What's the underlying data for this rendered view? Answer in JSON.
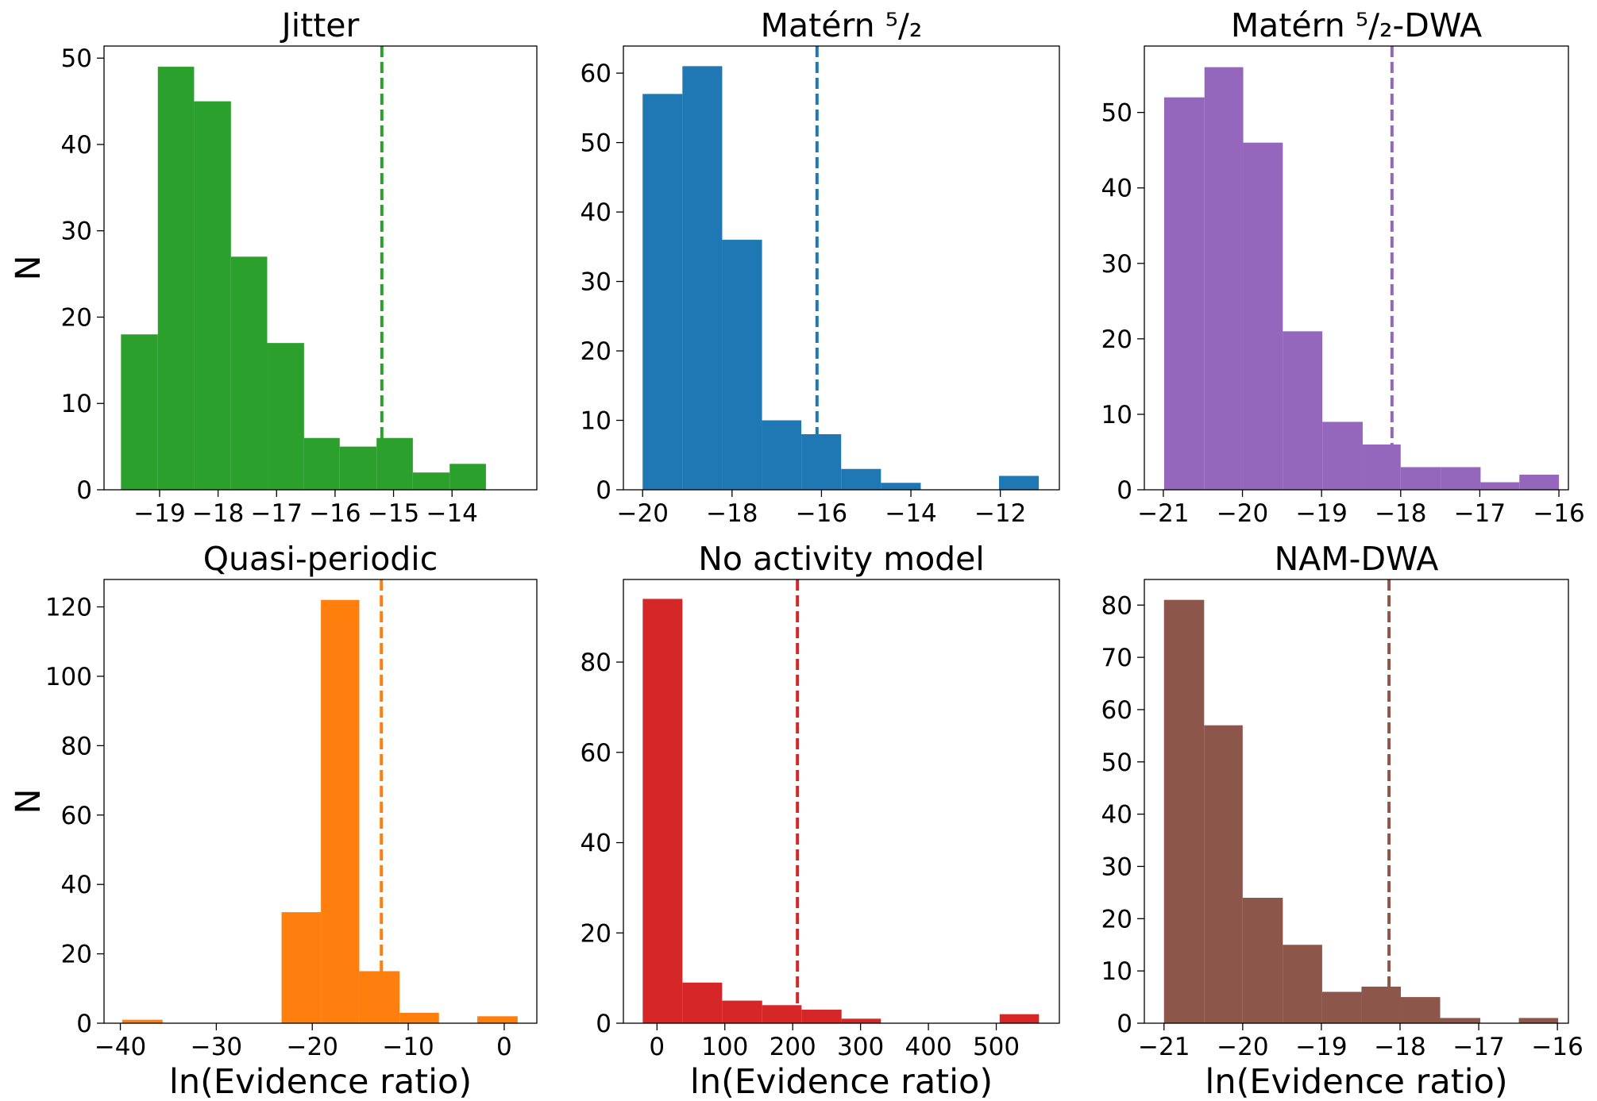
{
  "chart_data": [
    {
      "type": "histogram",
      "title": "Jitter",
      "ylabel": "N",
      "color": "#2ca02c",
      "bins": [
        -19.66,
        -19.03,
        -18.41,
        -17.78,
        -17.16,
        -16.53,
        -15.92,
        -15.29,
        -14.67,
        -14.04,
        -13.42
      ],
      "values": [
        18,
        49,
        45,
        27,
        17,
        6,
        5,
        6,
        2,
        3
      ],
      "vline": -15.2,
      "xlim": [
        -19.95,
        -12.55
      ],
      "xticks": [
        -19,
        -18,
        -17,
        -16,
        -15,
        -14
      ],
      "ylim": [
        0,
        51.4
      ],
      "yticks": [
        0,
        10,
        20,
        30,
        40,
        50
      ]
    },
    {
      "type": "histogram",
      "title": "Matérn ⁵/₂",
      "color": "#1f77b4",
      "bins": [
        -20.0,
        -19.11,
        -18.22,
        -17.33,
        -16.45,
        -15.56,
        -14.67,
        -13.78,
        -12.89,
        -12.03,
        -11.14
      ],
      "values": [
        57,
        61,
        36,
        10,
        8,
        3,
        1,
        0,
        0,
        2
      ],
      "vline": -16.1,
      "xlim": [
        -20.43,
        -10.68
      ],
      "xticks": [
        -20,
        -18,
        -16,
        -14,
        -12
      ],
      "ylim": [
        0,
        63.9
      ],
      "yticks": [
        0,
        10,
        20,
        30,
        40,
        50,
        60
      ]
    },
    {
      "type": "histogram",
      "title": "Matérn ⁵/₂-DWA",
      "color": "#9467bd",
      "bins": [
        -20.99,
        -20.48,
        -19.99,
        -19.49,
        -18.99,
        -18.48,
        -18.0,
        -17.49,
        -16.99,
        -16.5,
        -16.0
      ],
      "values": [
        52,
        56,
        46,
        21,
        9,
        6,
        3,
        3,
        1,
        2
      ],
      "vline": -18.11,
      "xlim": [
        -21.24,
        -15.88
      ],
      "xticks": [
        -21,
        -20,
        -19,
        -18,
        -17,
        -16
      ],
      "ylim": [
        0,
        58.8
      ],
      "yticks": [
        0,
        10,
        20,
        30,
        40,
        50
      ]
    },
    {
      "type": "histogram",
      "title": "Quasi-periodic",
      "ylabel": "N",
      "xlabel": "ln(Evidence ratio)",
      "color": "#ff7f0e",
      "bins": [
        -39.8,
        -35.6,
        -31.5,
        -27.4,
        -23.2,
        -19.1,
        -15.1,
        -10.9,
        -6.8,
        -2.8,
        1.4
      ],
      "values": [
        1,
        0,
        0,
        0,
        32,
        122,
        15,
        3,
        0,
        2
      ],
      "vline": -12.8,
      "xlim": [
        -41.7,
        3.4
      ],
      "xticks": [
        -40,
        -30,
        -20,
        -10,
        0
      ],
      "ylim": [
        0,
        127.9
      ],
      "yticks": [
        0,
        20,
        40,
        60,
        80,
        100,
        120
      ]
    },
    {
      "type": "histogram",
      "title": "No activity model",
      "xlabel": "ln(Evidence ratio)",
      "color": "#d62728",
      "bins": [
        -21,
        37.5,
        96,
        155,
        213,
        272,
        330,
        389,
        447,
        505,
        563
      ],
      "values": [
        94,
        9,
        5,
        4,
        3,
        1,
        0,
        0,
        0,
        2
      ],
      "vline": 207,
      "xlim": [
        -49.5,
        593
      ],
      "xticks": [
        0,
        100,
        200,
        300,
        400,
        500
      ],
      "ylim": [
        0,
        98.3
      ],
      "yticks": [
        0,
        20,
        40,
        60,
        80
      ]
    },
    {
      "type": "histogram",
      "title": "NAM-DWA",
      "xlabel": "ln(Evidence ratio)",
      "color": "#8c564b",
      "bins": [
        -21.0,
        -20.49,
        -20.0,
        -19.49,
        -18.99,
        -18.49,
        -17.99,
        -17.49,
        -16.98,
        -16.49,
        -15.99
      ],
      "values": [
        81,
        57,
        24,
        15,
        6,
        7,
        5,
        1,
        0,
        1
      ],
      "vline": -18.14,
      "xlim": [
        -21.25,
        -15.86
      ],
      "xticks": [
        -21,
        -20,
        -19,
        -18,
        -17,
        -16
      ],
      "ylim": [
        0,
        84.9
      ],
      "yticks": [
        0,
        10,
        20,
        30,
        40,
        50,
        60,
        70,
        80
      ]
    }
  ]
}
